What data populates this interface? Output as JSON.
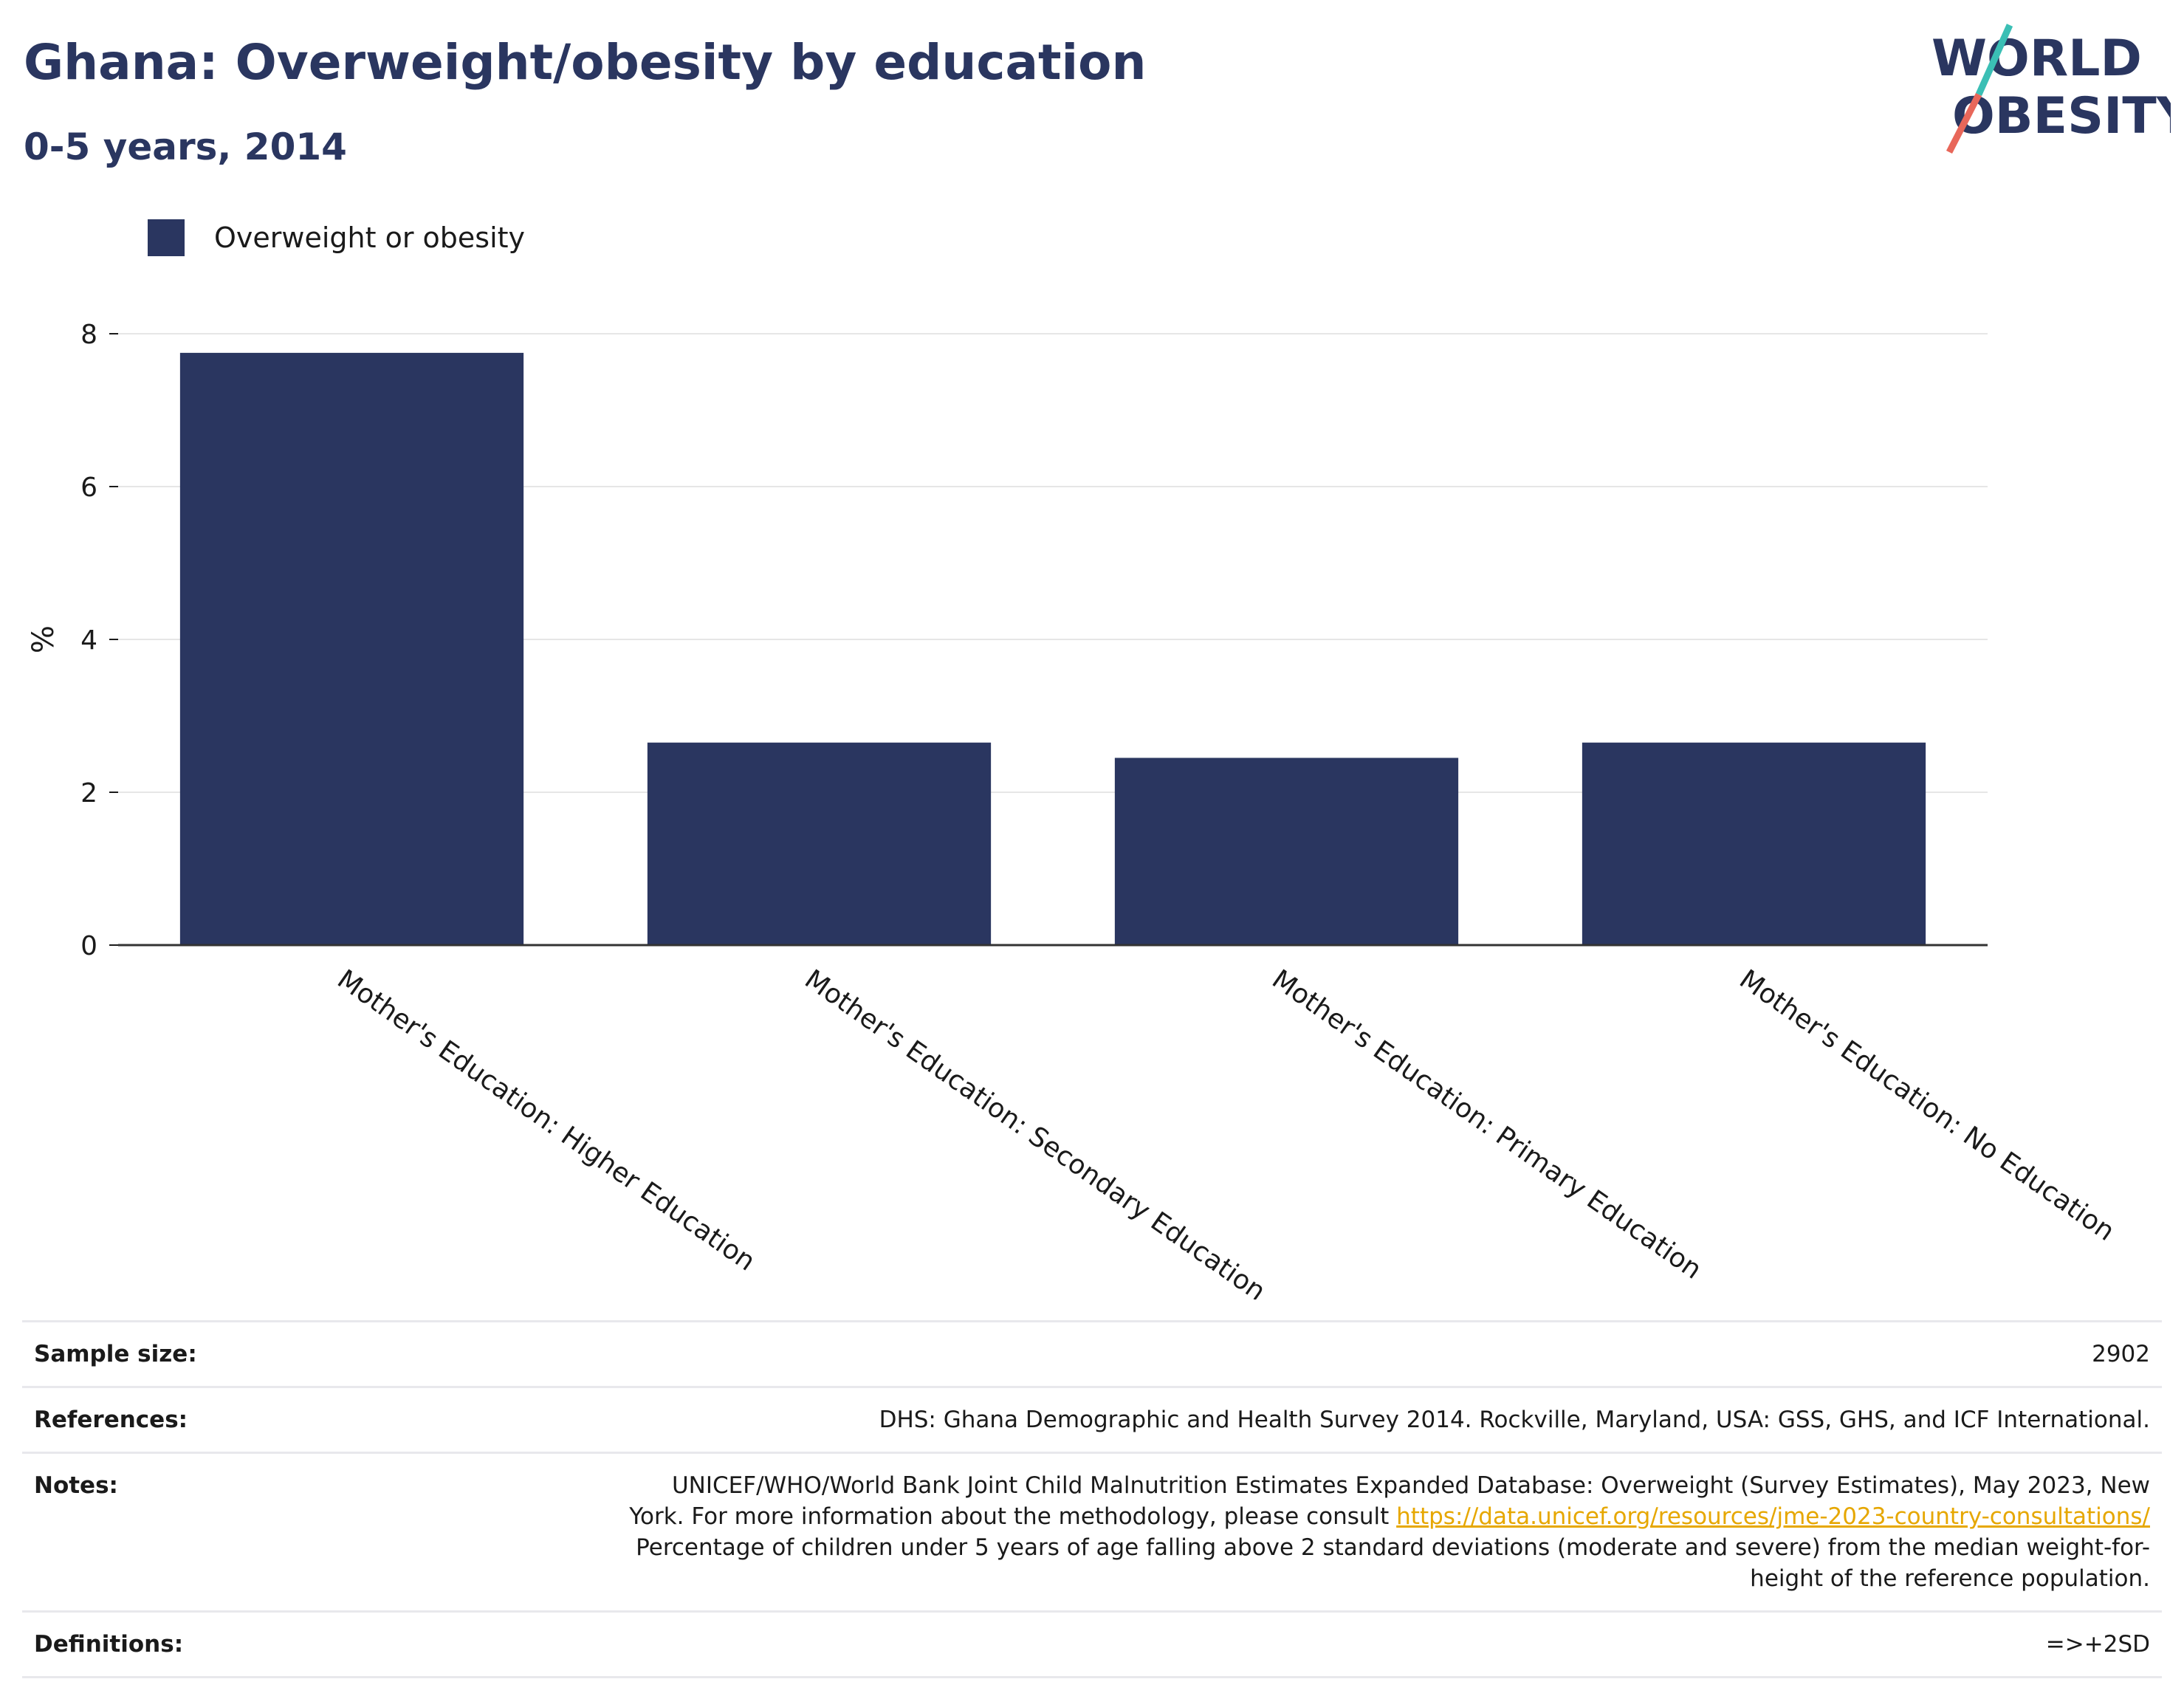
{
  "header": {
    "title": "Ghana: Overweight/obesity by education",
    "subtitle": "0-5 years, 2014"
  },
  "logo": {
    "line1": "WORLD",
    "line2": "OBESITY"
  },
  "colors": {
    "bar": "#2a3660",
    "accent_teal": "#3bbfb5",
    "accent_coral": "#e8675a",
    "link": "#e6a700"
  },
  "chart_data": {
    "type": "bar",
    "categories": [
      "Mother's Education: Higher Education",
      "Mother's Education: Secondary Education",
      "Mother's Education: Primary Education",
      "Mother's Education: No Education"
    ],
    "series": [
      {
        "name": "Overweight or obesity",
        "values": [
          7.75,
          2.65,
          2.45,
          2.65
        ]
      }
    ],
    "ylabel": "%",
    "xlabel": "",
    "ylim": [
      0,
      8
    ],
    "yticks": [
      0,
      2,
      4,
      6,
      8
    ],
    "grid": true,
    "legend": "top-left"
  },
  "info": {
    "sample_size_label": "Sample size:",
    "sample_size_value": "2902",
    "references_label": "References:",
    "references_value": "DHS: Ghana Demographic and Health Survey 2014. Rockville, Maryland, USA: GSS, GHS, and ICF International.",
    "notes_label": "Notes:",
    "notes_text_1": "UNICEF/WHO/World Bank Joint Child Malnutrition Estimates Expanded Database: Overweight (Survey Estimates), May 2023, New York. For more information about the methodology, please consult ",
    "notes_link": "https://data.unicef.org/resources/jme-2023-country-consultations/",
    "notes_text_2": "Percentage of children under 5 years of age falling above 2 standard deviations (moderate and severe) from the median weight-for-height of the reference population.",
    "definitions_label": "Definitions:",
    "definitions_value": "=>+2SD"
  }
}
